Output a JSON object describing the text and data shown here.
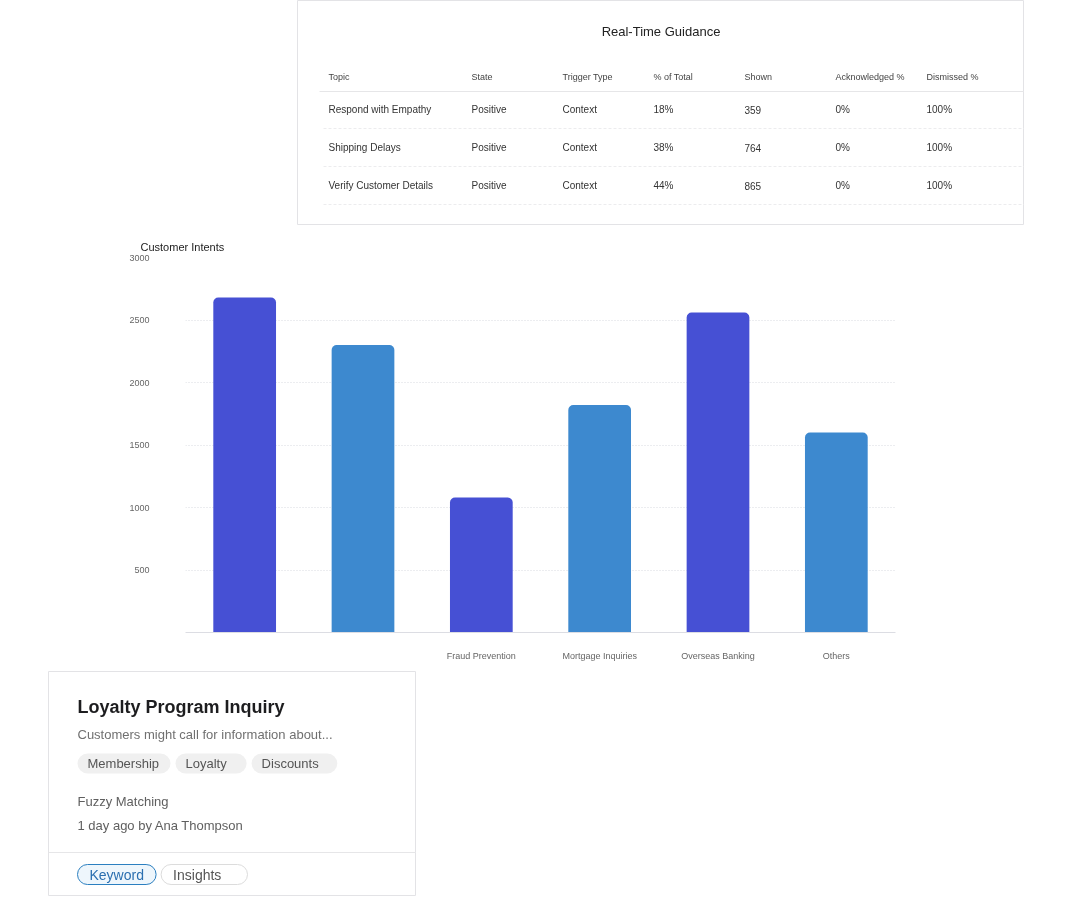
{
  "chart_data": [
    {
      "type": "other",
      "title": "Real-Time Guidance",
      "categories": [
        "Topic",
        "State",
        "Trigger Type",
        "% of Total",
        "Shown",
        "Acknowledged %",
        "Dismissed %"
      ],
      "cell_labels": [
        [
          "Respond with Empathy",
          "Positive",
          "Context",
          "18%",
          "359",
          "0%",
          "100%"
        ],
        [
          "Shipping Delays",
          "Positive",
          "Context",
          "38%",
          "764",
          "0%",
          "100%"
        ],
        [
          "Verify Customer Details",
          "Positive",
          "Context",
          "44%",
          "865",
          "0%",
          "100%"
        ]
      ]
    },
    {
      "type": "bar",
      "title": "Customer Intents",
      "categories": [
        null,
        null,
        "Fraud Prevention",
        "Mortgage Inquiries",
        "Overseas Banking",
        "Others"
      ],
      "values": [
        2680,
        2300,
        1080,
        1820,
        2560,
        1600
      ],
      "colors": [
        "#4650d4",
        "#3d89cf",
        "#4650d4",
        "#3d89cf",
        "#4650d4",
        "#3d89cf"
      ],
      "ylim": [
        0,
        3000
      ],
      "yticks": [
        {
          "value": 0,
          "label": null
        },
        500,
        1000,
        1500,
        2000,
        2500,
        3000
      ],
      "grid": "y"
    },
    {
      "type": "other",
      "title": "Loyalty Program Inquiry",
      "subtitle": "Customers might call for information about...",
      "categories": [
        "Membership",
        "Loyalty",
        "Discounts"
      ],
      "annotations": [
        "Fuzzy Matching",
        "1 day ago by Ana Thompson"
      ],
      "y_categories": [
        "Keyword",
        "Insights"
      ]
    }
  ]
}
